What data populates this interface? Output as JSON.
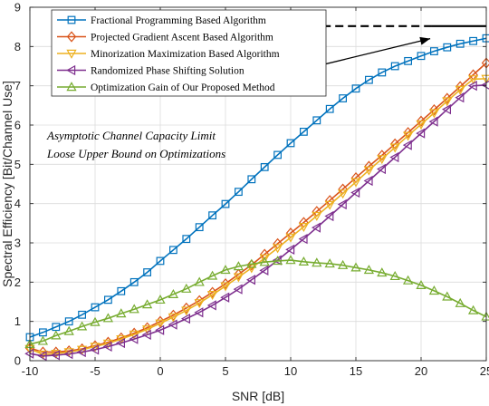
{
  "chart_data": {
    "type": "line",
    "xlabel": "SNR [dB]",
    "ylabel": "Spectral Efficiency [Bit/Channel Use]",
    "xlim": [
      -10,
      25
    ],
    "ylim": [
      0,
      9
    ],
    "xticks": [
      -10,
      -5,
      0,
      5,
      10,
      15,
      20,
      25
    ],
    "yticks": [
      0,
      1,
      2,
      3,
      4,
      5,
      6,
      7,
      8,
      9
    ],
    "xtick_labels": [
      "-10",
      "-5",
      "0",
      "5",
      "10",
      "15",
      "20",
      "25"
    ],
    "ytick_labels": [
      "0",
      "1",
      "2",
      "3",
      "4",
      "5",
      "6",
      "7",
      "8",
      "9"
    ],
    "grid": true,
    "legend_position": "top-left",
    "x": [
      -10,
      -9,
      -8,
      -7,
      -6,
      -5,
      -4,
      -3,
      -2,
      -1,
      0,
      1,
      2,
      3,
      4,
      5,
      6,
      7,
      8,
      9,
      10,
      11,
      12,
      13,
      14,
      15,
      16,
      17,
      18,
      19,
      20,
      21,
      22,
      23,
      24,
      25
    ],
    "series": [
      {
        "name": "Fractional Programming Based Algorithm",
        "color": "#0072BD",
        "marker": "square",
        "values": [
          0.6,
          0.72,
          0.86,
          1.0,
          1.17,
          1.36,
          1.55,
          1.77,
          2.0,
          2.25,
          2.54,
          2.82,
          3.1,
          3.4,
          3.7,
          3.99,
          4.3,
          4.62,
          4.93,
          5.24,
          5.54,
          5.83,
          6.12,
          6.41,
          6.68,
          6.93,
          7.15,
          7.34,
          7.5,
          7.63,
          7.76,
          7.88,
          7.98,
          8.07,
          8.14,
          8.21
        ]
      },
      {
        "name": "Projected Gradient Ascent Based Algorithm",
        "color": "#D95319",
        "marker": "diamond",
        "values": [
          0.32,
          0.22,
          0.22,
          0.25,
          0.3,
          0.38,
          0.47,
          0.58,
          0.7,
          0.84,
          1.0,
          1.16,
          1.34,
          1.53,
          1.74,
          1.96,
          2.2,
          2.44,
          2.71,
          2.98,
          3.25,
          3.52,
          3.8,
          4.08,
          4.37,
          4.66,
          4.95,
          5.23,
          5.52,
          5.81,
          6.1,
          6.39,
          6.68,
          6.98,
          7.28,
          7.58
        ]
      },
      {
        "name": "Minorization Maximization Based Algorithm",
        "color": "#EDB120",
        "marker": "triangle-down",
        "values": [
          0.3,
          0.16,
          0.18,
          0.22,
          0.28,
          0.36,
          0.44,
          0.55,
          0.67,
          0.8,
          0.95,
          1.11,
          1.28,
          1.47,
          1.68,
          1.9,
          2.13,
          2.36,
          2.61,
          2.87,
          3.14,
          3.41,
          3.69,
          3.97,
          4.26,
          4.55,
          4.85,
          5.14,
          5.43,
          5.73,
          6.02,
          6.31,
          6.61,
          6.9,
          7.17,
          7.18
        ]
      },
      {
        "name": "Randomized Phase Shifting Solution",
        "color": "#7E2F8E",
        "marker": "triangle-left",
        "values": [
          0.18,
          0.12,
          0.14,
          0.17,
          0.22,
          0.28,
          0.36,
          0.45,
          0.55,
          0.66,
          0.78,
          0.92,
          1.07,
          1.23,
          1.41,
          1.61,
          1.82,
          2.06,
          2.3,
          2.56,
          2.83,
          3.1,
          3.39,
          3.68,
          3.98,
          4.28,
          4.58,
          4.88,
          5.18,
          5.49,
          5.79,
          6.09,
          6.4,
          6.7,
          7.0,
          7.02
        ]
      },
      {
        "name": "Optimization Gain of Our Proposed Method",
        "color": "#77AC30",
        "marker": "triangle-up",
        "values": [
          0.42,
          0.5,
          0.64,
          0.75,
          0.87,
          0.98,
          1.08,
          1.2,
          1.31,
          1.43,
          1.55,
          1.69,
          1.83,
          2.0,
          2.16,
          2.31,
          2.4,
          2.46,
          2.51,
          2.54,
          2.56,
          2.52,
          2.49,
          2.47,
          2.43,
          2.37,
          2.31,
          2.24,
          2.15,
          2.04,
          1.92,
          1.78,
          1.63,
          1.46,
          1.28,
          1.12
        ]
      }
    ],
    "limit_line": {
      "x_start": 10.5,
      "x_end": 25,
      "y": 8.52
    },
    "annotation": {
      "line1": "Asymptotic Channel Capacity Limit",
      "line2": "Loose Upper Bound on Optimizations",
      "arrow_from": [
        4.5,
        6.9
      ],
      "arrow_to": [
        20.7,
        8.2
      ]
    }
  }
}
